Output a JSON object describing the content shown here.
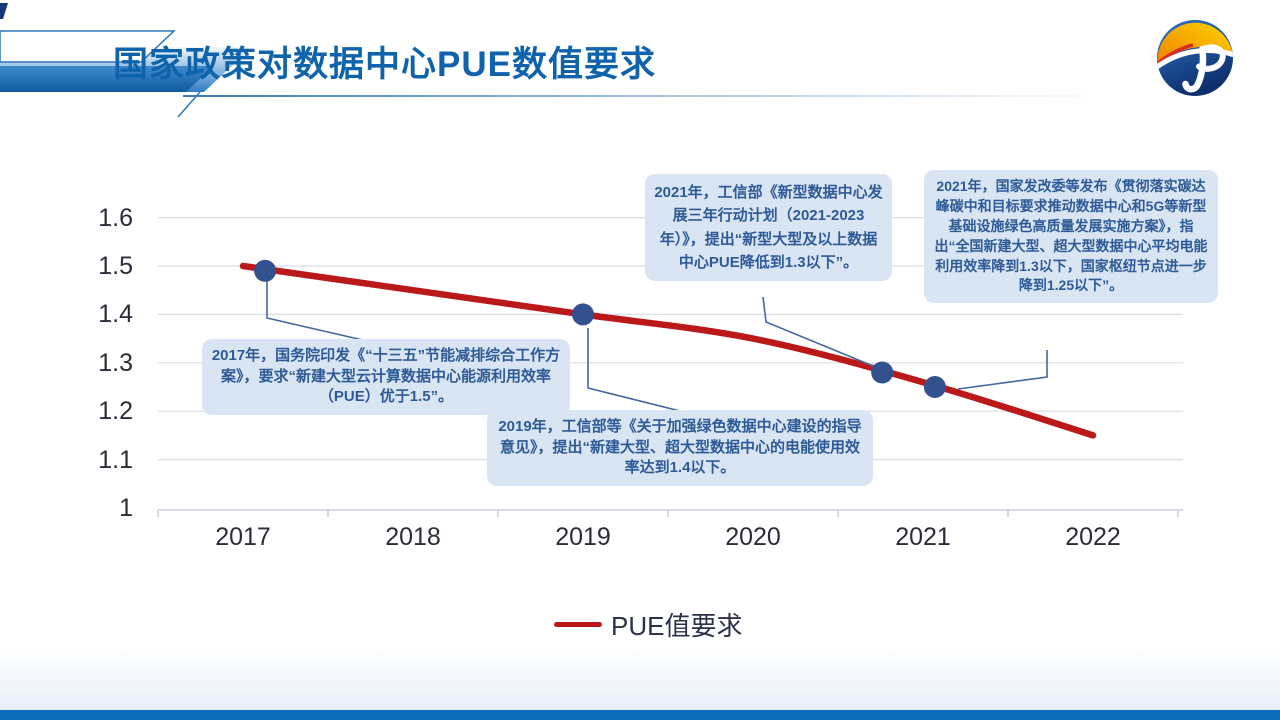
{
  "slide": {
    "title": "国家政策对数据中心PUE数值要求"
  },
  "chart_data": {
    "type": "line",
    "x": [
      "2017",
      "2018",
      "2019",
      "2020",
      "2021",
      "2022"
    ],
    "series": [
      {
        "name": "PUE值要求",
        "color": "#bb1919",
        "values": [
          1.5,
          1.45,
          1.4,
          1.35,
          1.26,
          1.15
        ]
      }
    ],
    "yticks": [
      1,
      1.1,
      1.2,
      1.3,
      1.4,
      1.5,
      1.6
    ],
    "ylim": [
      1,
      1.6
    ],
    "grid": true,
    "legend_position": "bottom",
    "marker_color": "#33518e",
    "markers": [
      {
        "year": 2017.13,
        "value": 1.49
      },
      {
        "year": 2019.0,
        "value": 1.4
      },
      {
        "year": 2020.76,
        "value": 1.28
      },
      {
        "year": 2021.07,
        "value": 1.25
      }
    ]
  },
  "annotations": [
    {
      "id": "2017",
      "text": "2017年，国务院印发《“十三五”节能减排综合工作方案》，要求“新建大型云计算数据中心能源利用效率（PUE）优于1.5”。"
    },
    {
      "id": "2019",
      "text": "2019年，工信部等《关于加强绿色数据中心建设的指导意见》，提出“新建大型、超大型数据中心的电能使用效率达到1.4以下。"
    },
    {
      "id": "2021-miit",
      "text": "2021年，工信部《新型数据中心发展三年行动计划（2021-2023年）》，提出“新型大型及以上数据中心PUE降低到1.3以下”。"
    },
    {
      "id": "2021-ndrc",
      "text": "2021年，国家发改委等发布《贯彻落实碳达峰碳中和目标要求推动数据中心和5G等新型基础设施绿色高质量发展实施方案》，指出“全国新建大型、超大型数据中心平均电能利用效率降到1.3以下，国家枢纽节点进一步降到1.25以下”。"
    }
  ],
  "colors": {
    "title_blue": "#0e63ab",
    "line_red": "#bb1919",
    "marker_blue": "#33518e",
    "callout_bg": "#d9e5f3",
    "callout_text": "#2e5b97",
    "footer_bar": "#0b6dbc"
  }
}
